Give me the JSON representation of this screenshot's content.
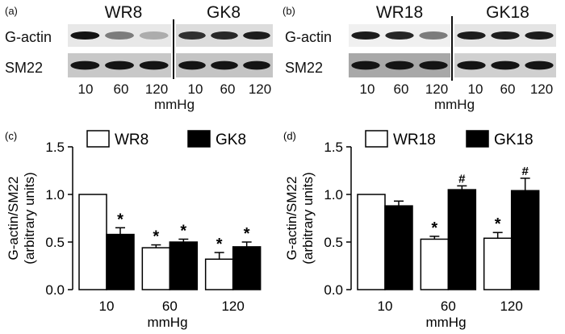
{
  "panels": {
    "a": {
      "letter": "(a)",
      "left_group": "WR8",
      "right_group": "GK8",
      "row1": "G-actin",
      "row2": "SM22",
      "lanes": [
        "10",
        "60",
        "120"
      ],
      "unit": "mmHg",
      "left_gactin_intensity": [
        0.95,
        0.4,
        0.15
      ],
      "right_gactin_intensity": [
        0.8,
        0.85,
        0.9
      ]
    },
    "b": {
      "letter": "(b)",
      "left_group": "WR18",
      "right_group": "GK18",
      "row1": "G-actin",
      "row2": "SM22",
      "lanes": [
        "10",
        "60",
        "120"
      ],
      "unit": "mmHg",
      "left_gactin_intensity": [
        0.9,
        0.85,
        0.4
      ],
      "right_gactin_intensity": [
        0.9,
        0.9,
        0.9
      ]
    }
  },
  "chart_data": [
    {
      "panel": "(c)",
      "type": "bar",
      "categories": [
        "10",
        "60",
        "120"
      ],
      "xlabel": "mmHg",
      "ylabel": "G-actin/SM22 (arbitrary units)",
      "ylabel_lines": [
        "G-actin/SM22",
        "(arbitrary units)"
      ],
      "ylim": [
        0,
        1.5
      ],
      "yticks": [
        "0.0",
        "0.5",
        "1.0",
        "1.5"
      ],
      "legend_position": "top",
      "series": [
        {
          "name": "WR8",
          "fill": "#ffffff",
          "values": [
            1.0,
            0.44,
            0.32
          ],
          "errors": [
            0,
            0.03,
            0.07
          ],
          "marks": [
            "",
            "*",
            "*"
          ]
        },
        {
          "name": "GK8",
          "fill": "#000000",
          "values": [
            0.58,
            0.5,
            0.45
          ],
          "errors": [
            0.07,
            0.03,
            0.05
          ],
          "marks": [
            "*",
            "*",
            "*"
          ]
        }
      ]
    },
    {
      "panel": "(d)",
      "type": "bar",
      "categories": [
        "10",
        "60",
        "120"
      ],
      "xlabel": "mmHg",
      "ylabel": "G-actin/SM22 (arbitrary units)",
      "ylabel_lines": [
        "G-actin/SM22",
        "(arbitrary units)"
      ],
      "ylim": [
        0,
        1.5
      ],
      "yticks": [
        "0.0",
        "0.5",
        "1.0",
        "1.5"
      ],
      "legend_position": "top",
      "series": [
        {
          "name": "WR18",
          "fill": "#ffffff",
          "values": [
            1.0,
            0.53,
            0.54
          ],
          "errors": [
            0,
            0.03,
            0.06
          ],
          "marks": [
            "",
            "*",
            "*"
          ]
        },
        {
          "name": "GK18",
          "fill": "#000000",
          "values": [
            0.88,
            1.05,
            1.04
          ],
          "errors": [
            0.05,
            0.04,
            0.13
          ],
          "marks": [
            "",
            "#",
            "#"
          ]
        }
      ]
    }
  ]
}
